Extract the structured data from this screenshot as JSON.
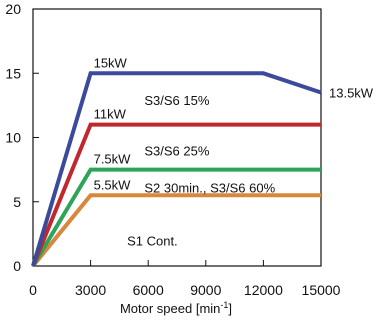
{
  "chart_data": {
    "type": "line",
    "xlabel": "Motor speed [min",
    "xlabel_sup": "-1",
    "xlabel_close": "]",
    "xlim": [
      0,
      15000
    ],
    "ylim": [
      0,
      20
    ],
    "x_ticks": [
      0,
      3000,
      6000,
      9000,
      12000,
      15000
    ],
    "x_tick_labels": [
      "0",
      "3000",
      "6000",
      "9000",
      "12000",
      "15000"
    ],
    "y_ticks": [
      0,
      5,
      10,
      15,
      20
    ],
    "y_tick_labels": [
      "0",
      "5",
      "10",
      "15",
      "20"
    ],
    "grid": false,
    "series": [
      {
        "label": "15kW",
        "end_label": "13.5kW",
        "color": "#3b4a9a",
        "points": [
          [
            0,
            0
          ],
          [
            3000,
            15
          ],
          [
            12000,
            15
          ],
          [
            15000,
            13.5
          ]
        ]
      },
      {
        "label": "11kW",
        "color": "#c0282d",
        "points": [
          [
            0,
            0
          ],
          [
            3000,
            11
          ],
          [
            15000,
            11
          ]
        ]
      },
      {
        "label": "7.5kW",
        "color": "#2ea35a",
        "points": [
          [
            0,
            0
          ],
          [
            3000,
            7.5
          ],
          [
            15000,
            7.5
          ]
        ]
      },
      {
        "label": "5.5kW",
        "color": "#d9873a",
        "points": [
          [
            0,
            0
          ],
          [
            3000,
            5.5
          ],
          [
            15000,
            5.5
          ]
        ]
      }
    ],
    "annotations": [
      {
        "text": "S3/S6 15%",
        "x": 5800,
        "y": 12.9
      },
      {
        "text": "S3/S6 25%",
        "x": 5800,
        "y": 9.0
      },
      {
        "text": "S2 30min., S3/S6 60%",
        "x": 5800,
        "y": 6.1
      },
      {
        "text": "S1 Cont.",
        "x": 4900,
        "y": 2.0
      }
    ]
  }
}
